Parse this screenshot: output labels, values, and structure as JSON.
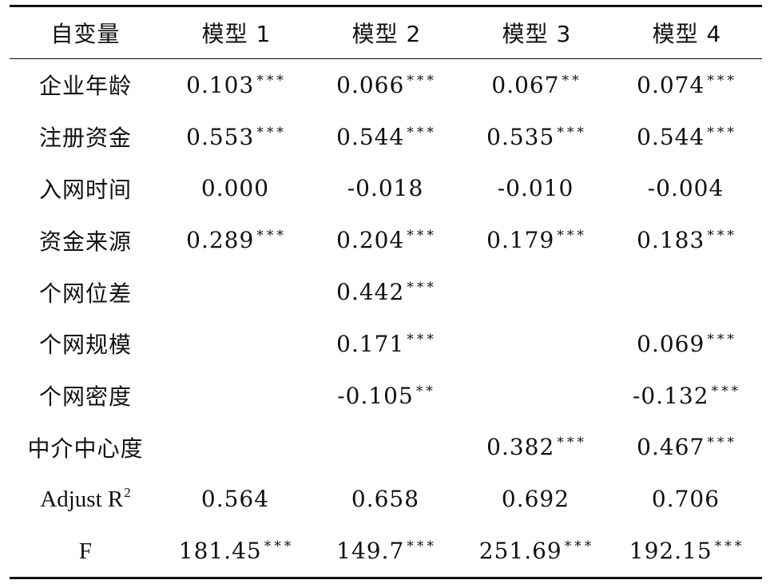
{
  "table": {
    "header": [
      "自变量",
      "模型 1",
      "模型 2",
      "模型 3",
      "模型 4"
    ],
    "rows": [
      {
        "label": "企业年龄",
        "cells": [
          {
            "v": "0.103",
            "s": "***"
          },
          {
            "v": "0.066",
            "s": "***"
          },
          {
            "v": "0.067",
            "s": "**"
          },
          {
            "v": "0.074",
            "s": "***"
          }
        ]
      },
      {
        "label": "注册资金",
        "cells": [
          {
            "v": "0.553",
            "s": "***"
          },
          {
            "v": "0.544",
            "s": "***"
          },
          {
            "v": "0.535",
            "s": "***"
          },
          {
            "v": "0.544",
            "s": "***"
          }
        ]
      },
      {
        "label": "入网时间",
        "cells": [
          {
            "v": "0.000",
            "s": ""
          },
          {
            "v": "-0.018",
            "s": ""
          },
          {
            "v": "-0.010",
            "s": ""
          },
          {
            "v": "-0.004",
            "s": ""
          }
        ]
      },
      {
        "label": "资金来源",
        "cells": [
          {
            "v": "0.289",
            "s": "***"
          },
          {
            "v": "0.204",
            "s": "***"
          },
          {
            "v": "0.179",
            "s": "***"
          },
          {
            "v": "0.183",
            "s": "***"
          }
        ]
      },
      {
        "label": "个网位差",
        "cells": [
          {
            "v": "",
            "s": ""
          },
          {
            "v": "0.442",
            "s": "***"
          },
          {
            "v": "",
            "s": ""
          },
          {
            "v": "",
            "s": ""
          }
        ]
      },
      {
        "label": "个网规模",
        "cells": [
          {
            "v": "",
            "s": ""
          },
          {
            "v": "0.171",
            "s": "***"
          },
          {
            "v": "",
            "s": ""
          },
          {
            "v": "0.069",
            "s": "***"
          }
        ]
      },
      {
        "label": "个网密度",
        "cells": [
          {
            "v": "",
            "s": ""
          },
          {
            "v": "-0.105",
            "s": "**"
          },
          {
            "v": "",
            "s": ""
          },
          {
            "v": "-0.132",
            "s": "***"
          }
        ]
      },
      {
        "label": "中介中心度",
        "cells": [
          {
            "v": "",
            "s": ""
          },
          {
            "v": "",
            "s": ""
          },
          {
            "v": "0.382",
            "s": "***"
          },
          {
            "v": "0.467",
            "s": "***"
          }
        ]
      },
      {
        "label": "Adjust R",
        "label_sup": "2",
        "cells": [
          {
            "v": "0.564",
            "s": ""
          },
          {
            "v": "0.658",
            "s": ""
          },
          {
            "v": "0.692",
            "s": ""
          },
          {
            "v": "0.706",
            "s": ""
          }
        ]
      },
      {
        "label": "F",
        "cells": [
          {
            "v": "181.45",
            "s": "***"
          },
          {
            "v": "149.7",
            "s": "***"
          },
          {
            "v": "251.69",
            "s": "***"
          },
          {
            "v": "192.15",
            "s": "***"
          }
        ]
      }
    ]
  }
}
